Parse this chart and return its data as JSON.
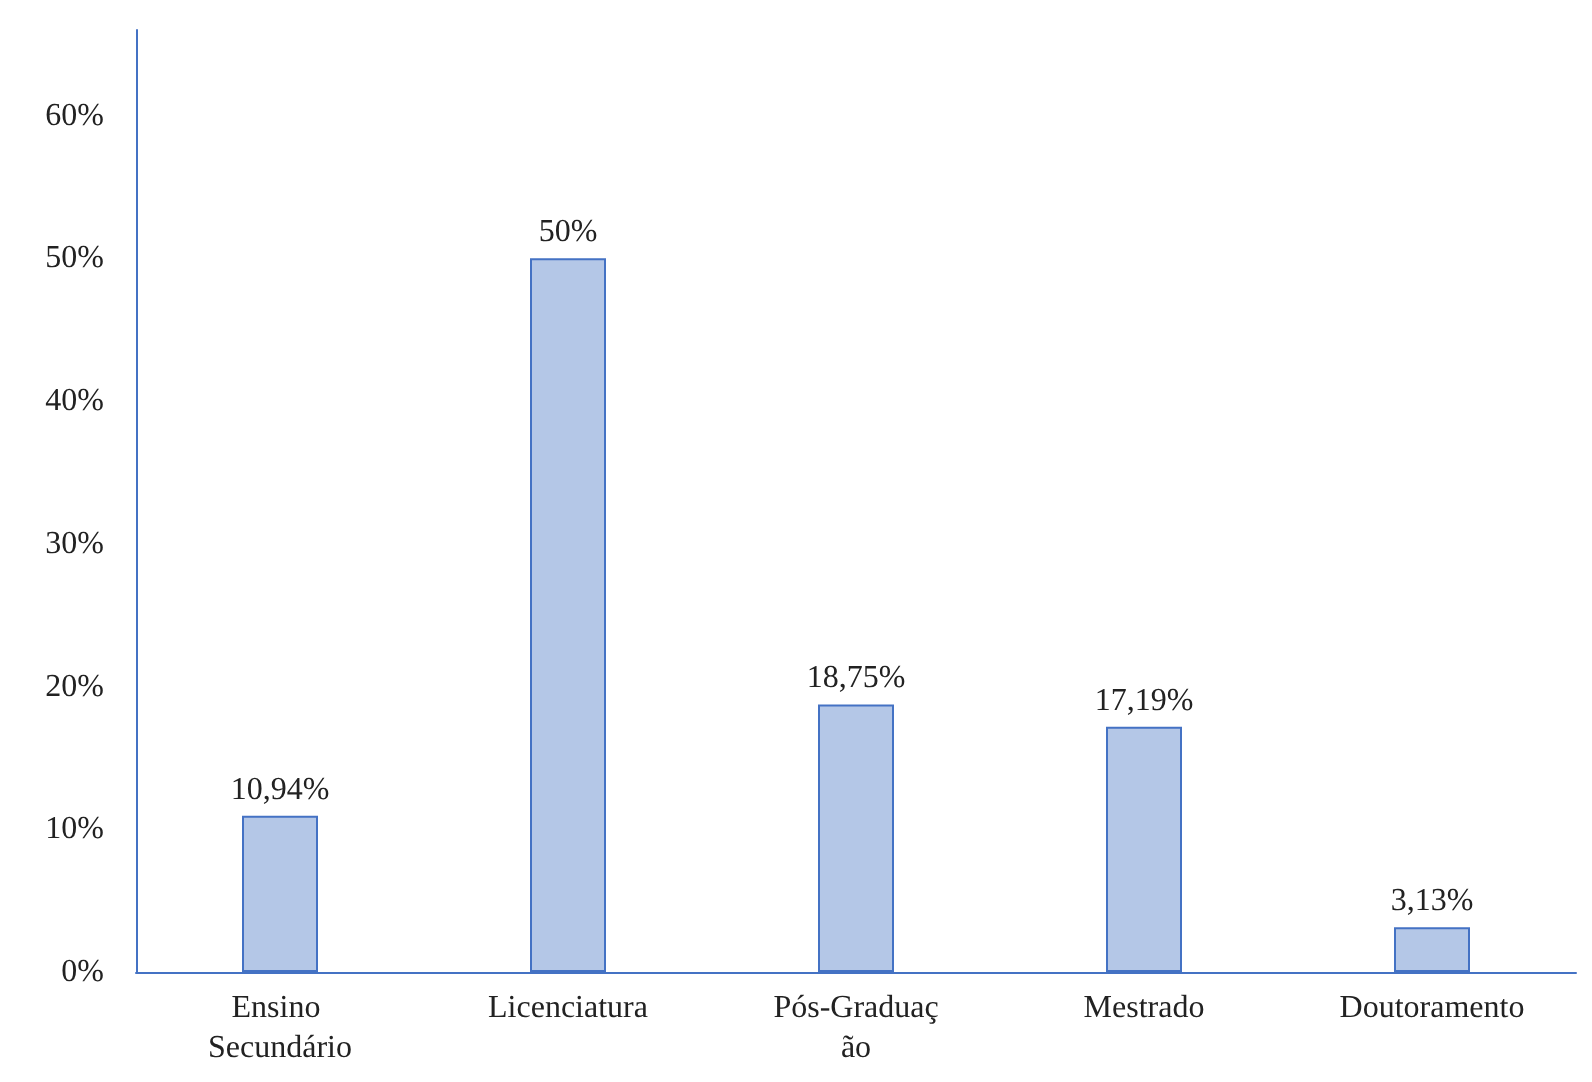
{
  "chart_data": {
    "type": "bar",
    "categories": [
      "Ensino Secundário",
      "Licenciatura",
      "Pós-Graduação",
      "Mestrado",
      "Doutoramento"
    ],
    "values": [
      10.94,
      50,
      18.75,
      17.19,
      3.13
    ],
    "value_labels": [
      "10,94%",
      "50%",
      "18,75%",
      "17,19%",
      "3,13%"
    ],
    "color": "#b4c7e7",
    "ylim": [
      0,
      66
    ],
    "yticks": [
      {
        "value": 0,
        "label": "0%"
      },
      {
        "value": 10,
        "label": "10%"
      },
      {
        "value": 20,
        "label": "20%"
      },
      {
        "value": 30,
        "label": "30%"
      },
      {
        "value": 40,
        "label": "40%"
      },
      {
        "value": 50,
        "label": "50%"
      },
      {
        "value": 60,
        "label": "60%"
      }
    ],
    "grid": false
  }
}
